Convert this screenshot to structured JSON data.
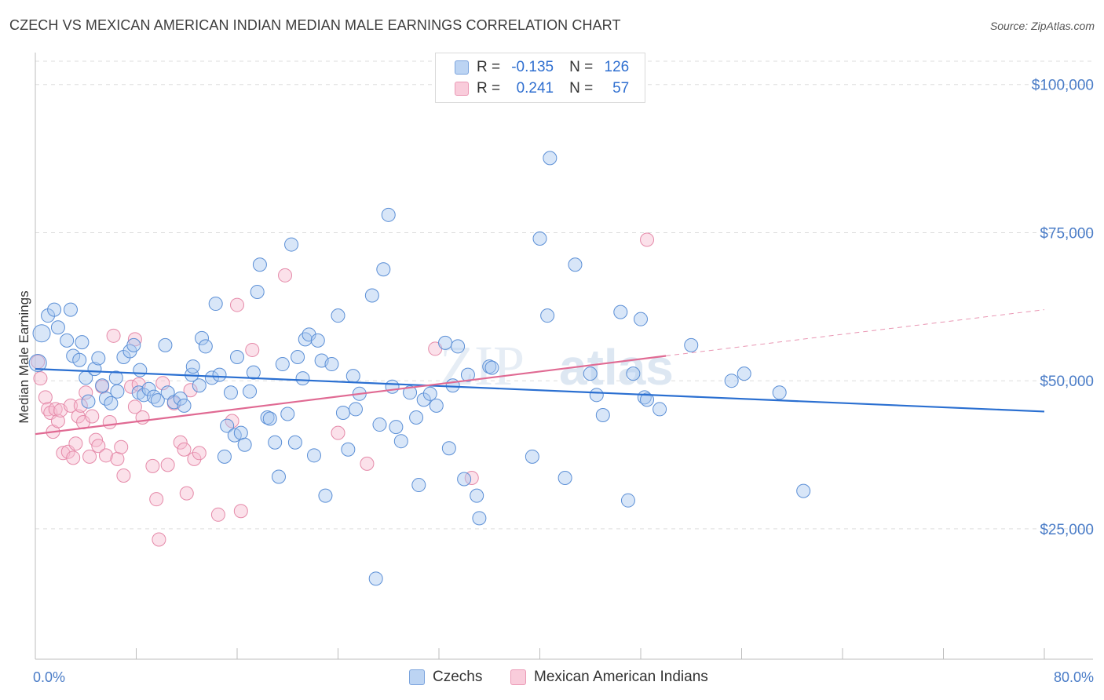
{
  "header": {
    "title": "CZECH VS MEXICAN AMERICAN INDIAN MEDIAN MALE EARNINGS CORRELATION CHART",
    "source": "Source: ZipAtlas.com"
  },
  "legend_top": [
    {
      "r_label": "R =",
      "r_value": "-0.135",
      "n_label": "N =",
      "n_value": "126"
    },
    {
      "r_label": "R =",
      "r_value": "0.241",
      "n_label": "N =",
      "n_value": "57"
    }
  ],
  "watermark": {
    "zip": "ZIP",
    "atlas": "atlas"
  },
  "colors": {
    "czech_fill": "#a9c8f0",
    "czech_stroke": "#5b8fd6",
    "czech_line": "#2a6fd1",
    "mexican_fill": "#f6bdd0",
    "mexican_stroke": "#e58aa9",
    "mexican_line": "#e06a93",
    "axis_text": "#4a7cc7",
    "grid": "#dddddd"
  },
  "chart_data": {
    "type": "scatter",
    "title": "CZECH VS MEXICAN AMERICAN INDIAN MEDIAN MALE EARNINGS CORRELATION CHART",
    "xlabel": "",
    "ylabel": "Median Male Earnings",
    "xlim": [
      0,
      80
    ],
    "ylim": [
      3000,
      105000
    ],
    "x_tick_labels": [
      "0.0%",
      "80.0%"
    ],
    "y_ticks": [
      25000,
      50000,
      75000,
      100000
    ],
    "y_tick_labels": [
      "$25,000",
      "$50,000",
      "$75,000",
      "$100,000"
    ],
    "grid": "horizontal dashed",
    "legend_placement": "top-center and bottom",
    "series": [
      {
        "name": "Czechs",
        "r": -0.135,
        "n": 126,
        "trend": {
          "x": [
            0,
            80
          ],
          "y": [
            52000,
            44800
          ]
        },
        "points": [
          [
            0.2,
            53000
          ],
          [
            0.5,
            58000
          ],
          [
            1.0,
            61000
          ],
          [
            1.5,
            62000
          ],
          [
            1.8,
            59000
          ],
          [
            2.8,
            62000
          ],
          [
            2.5,
            56800
          ],
          [
            3.0,
            54200
          ],
          [
            3.5,
            53500
          ],
          [
            3.7,
            56500
          ],
          [
            4.0,
            50500
          ],
          [
            4.2,
            46500
          ],
          [
            4.7,
            52000
          ],
          [
            5.0,
            53800
          ],
          [
            5.3,
            49200
          ],
          [
            5.6,
            47000
          ],
          [
            6.0,
            46200
          ],
          [
            6.4,
            50500
          ],
          [
            6.5,
            48200
          ],
          [
            7.0,
            54000
          ],
          [
            7.5,
            55000
          ],
          [
            7.8,
            56000
          ],
          [
            8.2,
            48000
          ],
          [
            8.3,
            51800
          ],
          [
            8.6,
            47600
          ],
          [
            9.0,
            48600
          ],
          [
            9.4,
            47300
          ],
          [
            9.7,
            46700
          ],
          [
            10.3,
            56000
          ],
          [
            10.5,
            48000
          ],
          [
            11.0,
            46400
          ],
          [
            11.5,
            47000
          ],
          [
            11.8,
            45800
          ],
          [
            12.4,
            51000
          ],
          [
            12.5,
            52400
          ],
          [
            13.0,
            49200
          ],
          [
            13.2,
            57200
          ],
          [
            13.5,
            55800
          ],
          [
            14.0,
            50500
          ],
          [
            14.3,
            63000
          ],
          [
            14.6,
            51000
          ],
          [
            15.0,
            37200
          ],
          [
            15.2,
            42400
          ],
          [
            15.5,
            48000
          ],
          [
            15.8,
            40800
          ],
          [
            16.0,
            54000
          ],
          [
            16.3,
            41200
          ],
          [
            16.6,
            39200
          ],
          [
            17.0,
            48200
          ],
          [
            17.3,
            51400
          ],
          [
            17.6,
            65000
          ],
          [
            17.8,
            69600
          ],
          [
            18.4,
            43800
          ],
          [
            18.6,
            43600
          ],
          [
            19.0,
            39600
          ],
          [
            19.3,
            33800
          ],
          [
            19.6,
            52800
          ],
          [
            20.0,
            44400
          ],
          [
            20.3,
            73000
          ],
          [
            20.6,
            39600
          ],
          [
            20.8,
            54000
          ],
          [
            21.2,
            50400
          ],
          [
            21.4,
            57000
          ],
          [
            21.7,
            57800
          ],
          [
            22.1,
            37400
          ],
          [
            22.4,
            56800
          ],
          [
            22.7,
            53400
          ],
          [
            23.0,
            30600
          ],
          [
            23.5,
            52800
          ],
          [
            24.0,
            61000
          ],
          [
            24.4,
            44600
          ],
          [
            24.8,
            38400
          ],
          [
            25.2,
            50800
          ],
          [
            25.4,
            45200
          ],
          [
            25.7,
            47800
          ],
          [
            26.7,
            64400
          ],
          [
            27.3,
            42600
          ],
          [
            27.6,
            68800
          ],
          [
            28.0,
            78000
          ],
          [
            28.3,
            49000
          ],
          [
            28.6,
            42200
          ],
          [
            29.0,
            39800
          ],
          [
            29.7,
            48000
          ],
          [
            30.2,
            43800
          ],
          [
            30.4,
            32400
          ],
          [
            30.8,
            46800
          ],
          [
            31.3,
            47800
          ],
          [
            31.8,
            45800
          ],
          [
            32.5,
            56400
          ],
          [
            32.8,
            38600
          ],
          [
            33.1,
            49200
          ],
          [
            33.5,
            55800
          ],
          [
            34.0,
            33400
          ],
          [
            34.3,
            51000
          ],
          [
            35.0,
            30600
          ],
          [
            35.2,
            26800
          ],
          [
            36.0,
            52400
          ],
          [
            36.2,
            52200
          ],
          [
            39.4,
            37200
          ],
          [
            40.0,
            74000
          ],
          [
            40.6,
            61000
          ],
          [
            40.8,
            87600
          ],
          [
            42.0,
            33600
          ],
          [
            42.8,
            69600
          ],
          [
            44.0,
            51200
          ],
          [
            44.5,
            47600
          ],
          [
            45.0,
            44200
          ],
          [
            46.4,
            61600
          ],
          [
            47.0,
            29800
          ],
          [
            47.4,
            51200
          ],
          [
            48.0,
            60400
          ],
          [
            48.3,
            47200
          ],
          [
            48.5,
            46800
          ],
          [
            49.5,
            45200
          ],
          [
            52.0,
            56000
          ],
          [
            55.2,
            50000
          ],
          [
            56.2,
            51200
          ],
          [
            59.0,
            48000
          ],
          [
            60.9,
            31400
          ],
          [
            27.0,
            16600
          ]
        ]
      },
      {
        "name": "Mexican American Indians",
        "r": 0.241,
        "n": 57,
        "trend": {
          "x": [
            0,
            50
          ],
          "y": [
            41000,
            54200
          ]
        },
        "trend_extension": {
          "x": [
            50,
            80
          ],
          "y": [
            54200,
            62000
          ]
        },
        "points": [
          [
            0.2,
            53200
          ],
          [
            0.4,
            50400
          ],
          [
            0.8,
            47200
          ],
          [
            1.0,
            45200
          ],
          [
            1.2,
            44600
          ],
          [
            1.4,
            41400
          ],
          [
            1.6,
            45200
          ],
          [
            1.8,
            43200
          ],
          [
            2.0,
            45000
          ],
          [
            2.2,
            37800
          ],
          [
            2.6,
            38000
          ],
          [
            2.8,
            45800
          ],
          [
            3.0,
            37000
          ],
          [
            3.2,
            39400
          ],
          [
            3.4,
            44000
          ],
          [
            3.6,
            45800
          ],
          [
            3.8,
            43000
          ],
          [
            4.0,
            48000
          ],
          [
            4.3,
            37200
          ],
          [
            4.5,
            44000
          ],
          [
            4.8,
            40000
          ],
          [
            5.0,
            39000
          ],
          [
            5.3,
            49000
          ],
          [
            5.6,
            37400
          ],
          [
            5.9,
            43000
          ],
          [
            6.2,
            57600
          ],
          [
            6.5,
            36800
          ],
          [
            6.8,
            38800
          ],
          [
            7.0,
            34000
          ],
          [
            7.6,
            49000
          ],
          [
            7.9,
            45600
          ],
          [
            8.2,
            49400
          ],
          [
            8.5,
            43800
          ],
          [
            9.3,
            35600
          ],
          [
            9.8,
            23200
          ],
          [
            9.6,
            30000
          ],
          [
            10.1,
            49600
          ],
          [
            10.5,
            35800
          ],
          [
            11.0,
            46200
          ],
          [
            11.5,
            39600
          ],
          [
            11.8,
            38400
          ],
          [
            12.0,
            31000
          ],
          [
            12.3,
            48400
          ],
          [
            12.6,
            36800
          ],
          [
            13.0,
            37800
          ],
          [
            14.5,
            27400
          ],
          [
            15.6,
            43200
          ],
          [
            16.0,
            62800
          ],
          [
            16.3,
            28000
          ],
          [
            17.2,
            55200
          ],
          [
            19.8,
            67800
          ],
          [
            24.0,
            41200
          ],
          [
            26.3,
            36000
          ],
          [
            31.7,
            55400
          ],
          [
            34.6,
            33600
          ],
          [
            48.5,
            73800
          ],
          [
            7.9,
            57000
          ]
        ]
      }
    ]
  },
  "bottom_legend": [
    {
      "label": "Czechs"
    },
    {
      "label": "Mexican American Indians"
    }
  ]
}
